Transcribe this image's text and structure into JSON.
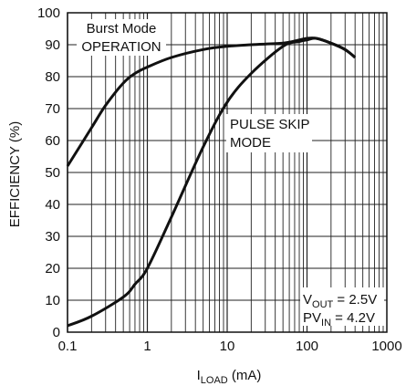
{
  "chart_data": {
    "type": "line",
    "xlabel": {
      "main": "I",
      "sub": "LOAD",
      "unit": " (mA)"
    },
    "ylabel": "EFFICIENCY (%)",
    "x_scale": "log",
    "xlim": [
      0.1,
      1000
    ],
    "ylim": [
      0,
      100
    ],
    "x_ticks": [
      {
        "value": 0.1,
        "label": "0.1"
      },
      {
        "value": 1,
        "label": "1"
      },
      {
        "value": 10,
        "label": "10"
      },
      {
        "value": 100,
        "label": "100"
      },
      {
        "value": 1000,
        "label": "1000"
      }
    ],
    "y_ticks": [
      0,
      10,
      20,
      30,
      40,
      50,
      60,
      70,
      80,
      90,
      100
    ],
    "grid": true,
    "series": [
      {
        "name": "Burst Mode OPERATION",
        "x": [
          0.1,
          0.2,
          0.3,
          0.5,
          0.7,
          1,
          2,
          5,
          10,
          20,
          50,
          80,
          100,
          130,
          200,
          300,
          400
        ],
        "y": [
          52,
          64,
          71,
          78,
          81,
          83,
          86,
          88.5,
          89.5,
          90,
          90.5,
          91.5,
          92,
          92,
          90.5,
          88.5,
          86
        ]
      },
      {
        "name": "PULSE SKIP MODE",
        "x": [
          0.1,
          0.2,
          0.5,
          0.7,
          1,
          2,
          5,
          10,
          20,
          50,
          80,
          100,
          130,
          200,
          300,
          400
        ],
        "y": [
          2,
          5,
          11,
          15,
          20,
          36,
          58,
          72,
          81,
          89.5,
          91,
          91.5,
          92,
          90.5,
          88.5,
          86
        ]
      }
    ],
    "annotations": [
      {
        "lines": [
          "Burst Mode",
          "OPERATION"
        ]
      },
      {
        "lines": [
          "PULSE SKIP",
          "MODE"
        ]
      }
    ],
    "conditions": {
      "line1": {
        "main": "V",
        "sub": "OUT",
        "rest": " = 2.5V"
      },
      "line2": {
        "main": "PV",
        "sub": "IN",
        "rest": " = 4.2V"
      }
    }
  }
}
